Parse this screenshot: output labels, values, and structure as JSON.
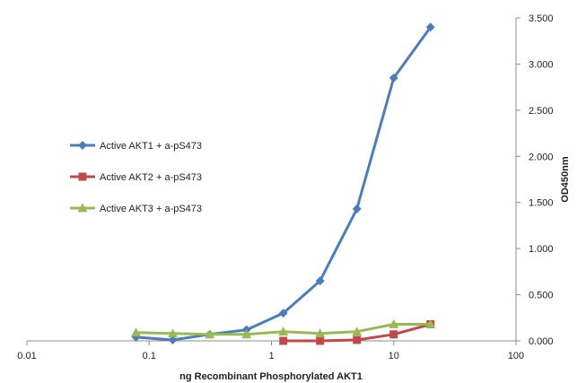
{
  "chart_data": {
    "type": "line",
    "xscale": "log",
    "xlim": [
      0.01,
      100
    ],
    "ylim": [
      0,
      3.5
    ],
    "x_ticks": [
      "0.01",
      "0.1",
      "1",
      "10",
      "100"
    ],
    "y_ticks": [
      "0.000",
      "0.500",
      "1.000",
      "1.500",
      "2.000",
      "2.500",
      "3.000",
      "3.500"
    ],
    "xlabel": "ng Recombinant Phosphorylated AKT1",
    "ylabel": "OD450nm",
    "y_axis_side": "right",
    "grid": false,
    "legend_position": "left-middle",
    "series": [
      {
        "name": "Active AKT1 + a-pS473",
        "color": "#4a7ebb",
        "marker": "diamond",
        "x": [
          0.078,
          0.156,
          0.3125,
          0.625,
          1.25,
          2.5,
          5,
          10,
          20
        ],
        "y": [
          0.04,
          0.01,
          0.07,
          0.12,
          0.3,
          0.65,
          1.43,
          2.85,
          3.4
        ]
      },
      {
        "name": "Active AKT2 + a-pS473",
        "color": "#be4b48",
        "marker": "square",
        "x": [
          1.25,
          2.5,
          5,
          10,
          20
        ],
        "y": [
          0.0,
          0.0,
          0.01,
          0.07,
          0.18
        ]
      },
      {
        "name": "Active AKT3 + a-pS473",
        "color": "#98b954",
        "marker": "triangle",
        "x": [
          0.078,
          0.156,
          0.3125,
          0.625,
          1.25,
          2.5,
          5,
          10,
          20
        ],
        "y": [
          0.09,
          0.08,
          0.07,
          0.07,
          0.1,
          0.08,
          0.1,
          0.18,
          0.18
        ]
      }
    ]
  }
}
